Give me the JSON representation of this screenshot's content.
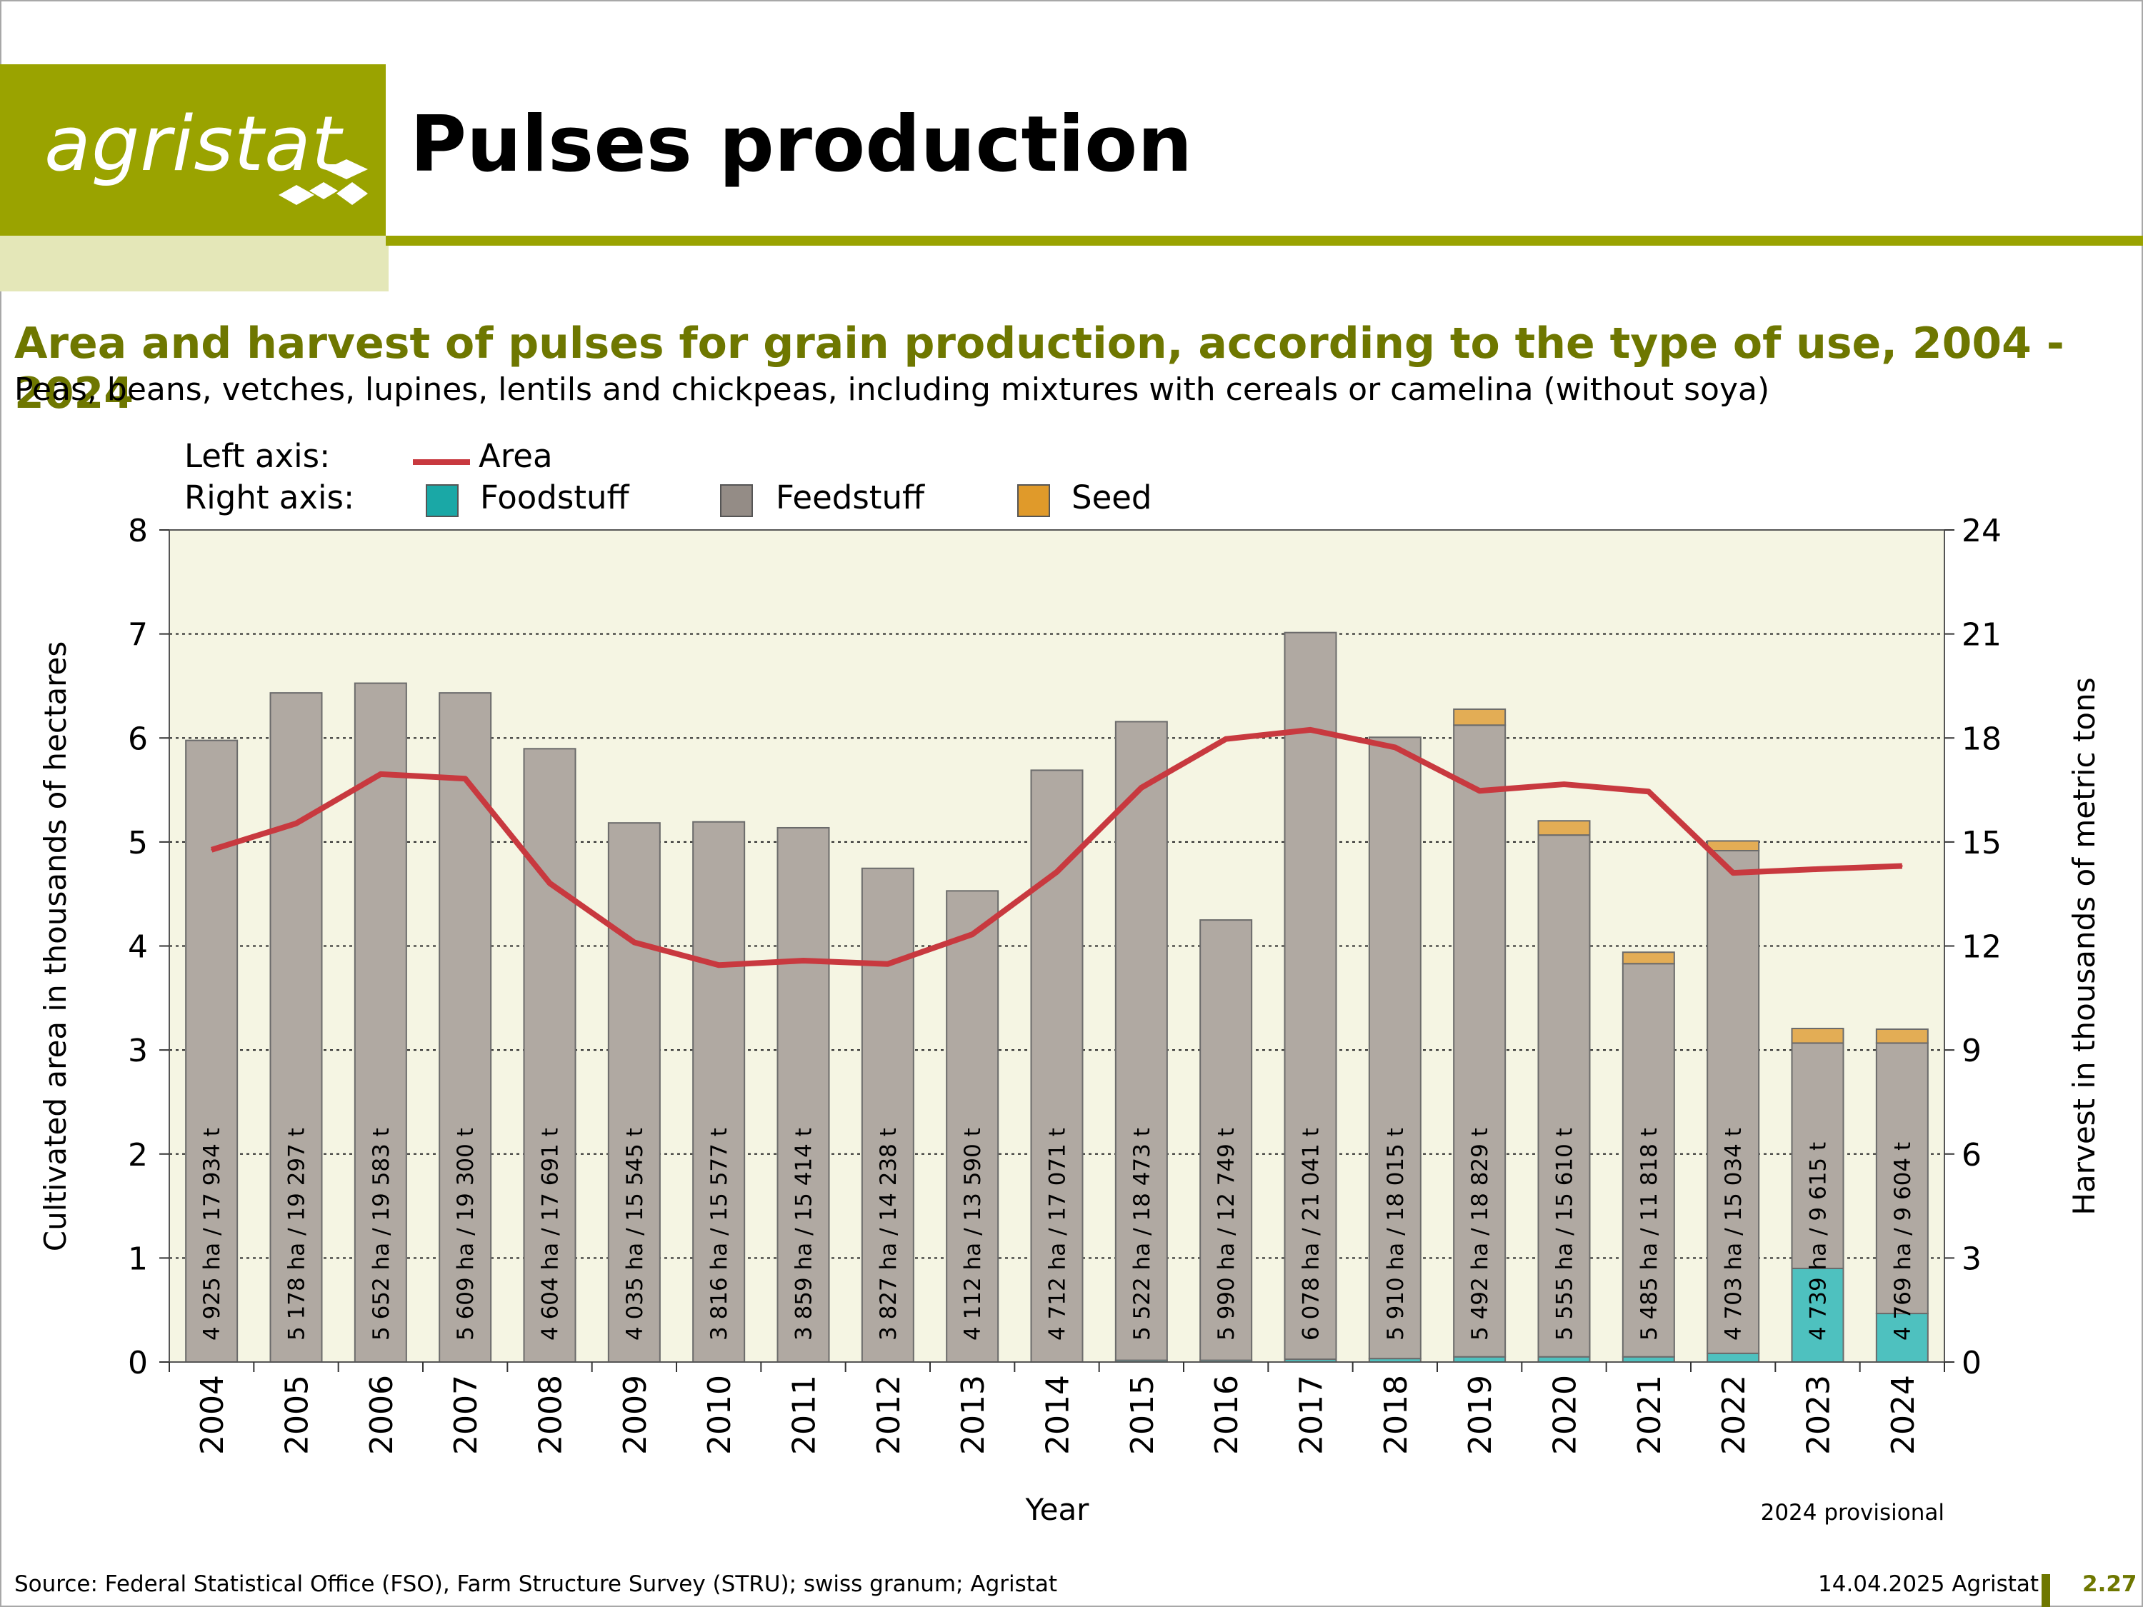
{
  "header": {
    "logo_text": "agristat",
    "title": "Pulses production"
  },
  "chart_data": {
    "type": "bar",
    "title": "Area and harvest of pulses for grain production, according to the type of use, 2004 - 2024",
    "subtitle": "Peas, beans, vetches, lupines, lentils and chickpeas, including mixtures with cereals or camelina (without soya)",
    "xlabel": "Year",
    "ylabel_left": "Cultivated area in thousands of hectares",
    "ylabel_right": "Harvest in thousands of metric tons",
    "ylim_left": [
      0,
      8
    ],
    "ylim_right": [
      0,
      24
    ],
    "yticks_left": [
      0,
      1,
      2,
      3,
      4,
      5,
      6,
      7,
      8
    ],
    "yticks_right": [
      0,
      3,
      6,
      9,
      12,
      15,
      18,
      21,
      24
    ],
    "grid": true,
    "legend": {
      "left_axis_label": "Left axis:",
      "right_axis_label": "Right axis:",
      "area_label": "Area",
      "foodstuff_label": "Foodstuff",
      "feedstuff_label": "Feedstuff",
      "seed_label": "Seed"
    },
    "categories": [
      "2004",
      "2005",
      "2006",
      "2007",
      "2008",
      "2009",
      "2010",
      "2011",
      "2012",
      "2013",
      "2014",
      "2015",
      "2016",
      "2017",
      "2018",
      "2019",
      "2020",
      "2021",
      "2022",
      "2023",
      "2024"
    ],
    "series": [
      {
        "name": "Foodstuff",
        "axis": "right",
        "values": [
          0,
          0,
          0,
          0,
          0,
          0,
          0,
          0,
          0,
          0,
          0,
          0.05,
          0.05,
          0.08,
          0.1,
          0.15,
          0.15,
          0.15,
          0.25,
          2.7,
          1.4
        ]
      },
      {
        "name": "Feedstuff",
        "axis": "right",
        "values": [
          17.93,
          19.3,
          19.58,
          19.3,
          17.69,
          15.55,
          15.58,
          15.41,
          14.24,
          13.59,
          17.07,
          18.42,
          12.7,
          20.96,
          17.92,
          18.22,
          15.05,
          11.34,
          14.5,
          6.5,
          7.8
        ]
      },
      {
        "name": "Seed",
        "axis": "right",
        "values": [
          0,
          0,
          0,
          0,
          0,
          0,
          0,
          0,
          0,
          0,
          0,
          0,
          0,
          0,
          0,
          0.46,
          0.41,
          0.33,
          0.28,
          0.42,
          0.4
        ]
      },
      {
        "name": "Area",
        "axis": "left",
        "values": [
          4.925,
          5.178,
          5.652,
          5.609,
          4.604,
          4.035,
          3.816,
          3.859,
          3.827,
          4.112,
          4.712,
          5.522,
          5.99,
          6.078,
          5.91,
          5.492,
          5.555,
          5.485,
          4.703,
          4.739,
          4.769
        ]
      }
    ],
    "bar_labels": [
      "4 925 ha / 17 934 t",
      "5 178 ha / 19 297 t",
      "5 652 ha / 19 583 t",
      "5 609 ha / 19 300 t",
      "4 604 ha / 17 691 t",
      "4 035 ha / 15 545 t",
      "3 816 ha / 15 577 t",
      "3 859 ha / 15 414 t",
      "3 827 ha / 14 238 t",
      "4 112 ha / 13 590 t",
      "4 712 ha / 17 071 t",
      "5 522 ha / 18 473 t",
      "5 990 ha / 12 749 t",
      "6 078 ha / 21 041 t",
      "5 910 ha / 18 015 t",
      "5 492 ha / 18 829 t",
      "5 555 ha / 15 610 t",
      "5 485 ha / 11 818 t",
      "4 703 ha / 15 034 t",
      "4 739 ha / 9 615 t",
      "4 769 ha / 9 604 t"
    ],
    "note": "2024 provisional",
    "colors": {
      "foodstuff": "#4ec1bf",
      "feedstuff": "#b0a9a2",
      "seed": "#e3ad55",
      "area": "#c8393f",
      "plot_bg": "#f5f5e3"
    }
  },
  "footer": {
    "source": "Source: Federal Statistical Office (FSO), Farm Structure Survey (STRU); swiss granum; Agristat",
    "date": "14.04.2025 Agristat",
    "page": "2.27"
  }
}
